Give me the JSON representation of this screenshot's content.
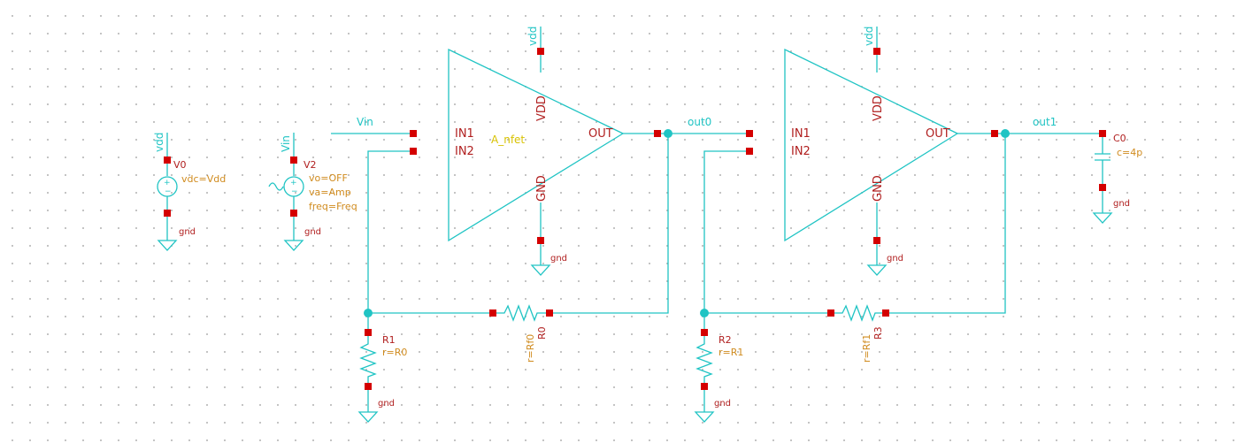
{
  "colors": {
    "wire": "#20c4c4",
    "pin": "#d40000",
    "instance": "#b01e1e",
    "param": "#d08b1e",
    "amp_label": "#d8c200"
  },
  "nets": {
    "vdd": "vdd",
    "vin": "Vin",
    "out0": "out0",
    "out1": "out1",
    "gnd": "gnd"
  },
  "amp1": {
    "name": "A_nfet",
    "in1": "IN1",
    "in2": "IN2",
    "out": "OUT",
    "vdd": "VDD",
    "gnd": "GND"
  },
  "amp2": {
    "in1": "IN1",
    "in2": "IN2",
    "out": "OUT",
    "vdd": "VDD",
    "gnd": "GND"
  },
  "v0": {
    "name": "V0",
    "param": "vdc=Vdd"
  },
  "v2": {
    "name": "V2",
    "params": [
      "vo=OFF",
      "va=Amp",
      "freq=Freq"
    ]
  },
  "c0": {
    "name": "C0",
    "param": "c=4p"
  },
  "r0": {
    "name": "R0",
    "param": "r=Rf0"
  },
  "r1": {
    "name": "R1",
    "param": "r=R0"
  },
  "r2": {
    "name": "R2",
    "param": "r=R1"
  },
  "r3": {
    "name": "R3",
    "param": "r=Rf1"
  }
}
